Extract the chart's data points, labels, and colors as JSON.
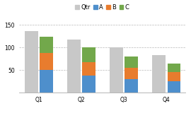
{
  "categories": [
    "Q1",
    "Q2",
    "Q3",
    "Q4"
  ],
  "qtr_values": [
    137,
    118,
    100,
    83
  ],
  "A_values": [
    50,
    38,
    30,
    25
  ],
  "B_values": [
    38,
    30,
    25,
    20
  ],
  "C_values": [
    35,
    32,
    25,
    20
  ],
  "qtr_color": "#c8c8c8",
  "A_color": "#4e8fcc",
  "B_color": "#e87c2e",
  "C_color": "#72a84b",
  "legend_labels": [
    "Qtr",
    "A",
    "B",
    "C"
  ],
  "ylim": [
    0,
    160
  ],
  "yticks": [
    0,
    50,
    100,
    150
  ],
  "bg_color": "#ffffff",
  "grid_color": "#b8b8b8",
  "tick_fontsize": 5.5,
  "legend_fontsize": 6.0
}
